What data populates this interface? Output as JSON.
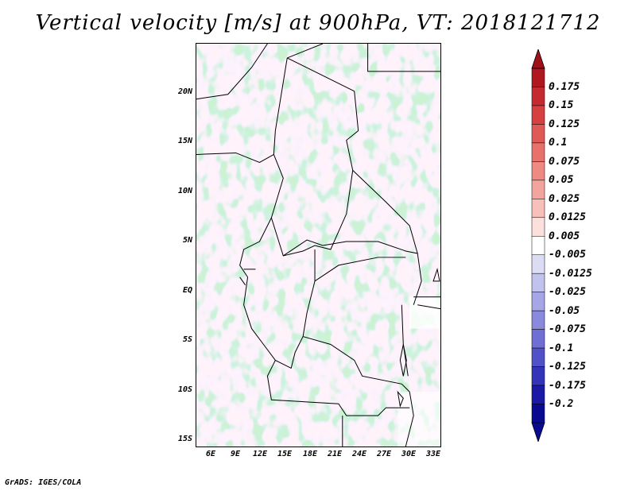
{
  "title": "Vertical velocity [m/s] at 900hPa, VT: 2018121712",
  "credit": "GrADS: IGES/COLA",
  "map": {
    "lat_labels": [
      "20N",
      "15N",
      "10N",
      "5N",
      "EQ",
      "5S",
      "10S",
      "15S"
    ],
    "lon_labels": [
      "6E",
      "9E",
      "12E",
      "15E",
      "18E",
      "21E",
      "24E",
      "27E",
      "30E",
      "33E"
    ]
  },
  "colorbar": {
    "labels": [
      "0.175",
      "0.15",
      "0.125",
      "0.1",
      "0.075",
      "0.05",
      "0.025",
      "0.0125",
      "0.005",
      "-0.005",
      "-0.0125",
      "-0.025",
      "-0.05",
      "-0.075",
      "-0.1",
      "-0.125",
      "-0.175",
      "-0.2"
    ],
    "colors": [
      "#b0171f",
      "#c42a2e",
      "#d6403f",
      "#e05a55",
      "#e8726b",
      "#ee8a82",
      "#f3a49d",
      "#f8c0ba",
      "#fce0dc",
      "#ffffff",
      "#dcdcf5",
      "#c2c2ee",
      "#a6a6e6",
      "#8a8add",
      "#6e6ed4",
      "#5252c8",
      "#3434b8",
      "#1a1aa6",
      "#0a0a90"
    ],
    "top_arrow_color": "#a01018",
    "bottom_arrow_color": "#0a0a90"
  }
}
